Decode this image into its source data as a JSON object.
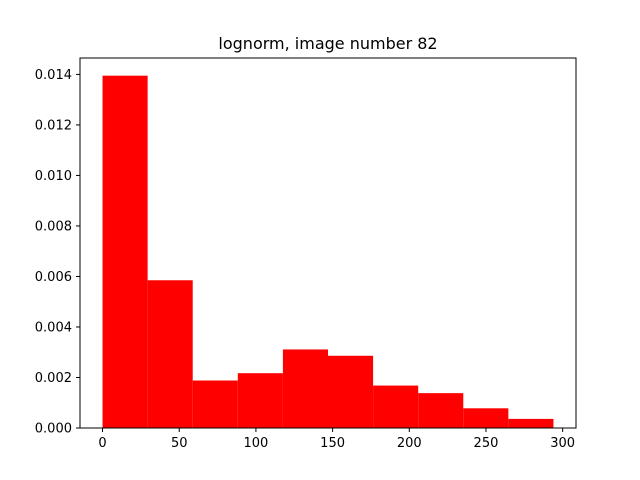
{
  "chart_data": {
    "type": "bar",
    "title": "lognorm, image number 82",
    "xlabel": "",
    "ylabel": "",
    "bins": [
      {
        "x0": 0,
        "x1": 29.4,
        "value": 0.01395
      },
      {
        "x0": 29.4,
        "x1": 58.8,
        "value": 0.00585
      },
      {
        "x0": 58.8,
        "x1": 88.2,
        "value": 0.00188
      },
      {
        "x0": 88.2,
        "x1": 117.6,
        "value": 0.00217
      },
      {
        "x0": 117.6,
        "x1": 147.0,
        "value": 0.00311
      },
      {
        "x0": 147.0,
        "x1": 176.4,
        "value": 0.00286
      },
      {
        "x0": 176.4,
        "x1": 205.8,
        "value": 0.00168
      },
      {
        "x0": 205.8,
        "x1": 235.2,
        "value": 0.00138
      },
      {
        "x0": 235.2,
        "x1": 264.6,
        "value": 0.00078
      },
      {
        "x0": 264.6,
        "x1": 294.0,
        "value": 0.00036
      }
    ],
    "xlim": [
      -14.7,
      308.7
    ],
    "ylim": [
      0,
      0.01465
    ],
    "xticks": [
      0,
      50,
      100,
      150,
      200,
      250,
      300
    ],
    "xtick_labels": [
      "0",
      "50",
      "100",
      "150",
      "200",
      "250",
      "300"
    ],
    "yticks": [
      0,
      0.002,
      0.004,
      0.006,
      0.008,
      0.01,
      0.012,
      0.014
    ],
    "ytick_labels": [
      "0.000",
      "0.002",
      "0.004",
      "0.006",
      "0.008",
      "0.010",
      "0.012",
      "0.014"
    ],
    "bar_color": "#ff0000",
    "grid": false,
    "legend": "none"
  }
}
